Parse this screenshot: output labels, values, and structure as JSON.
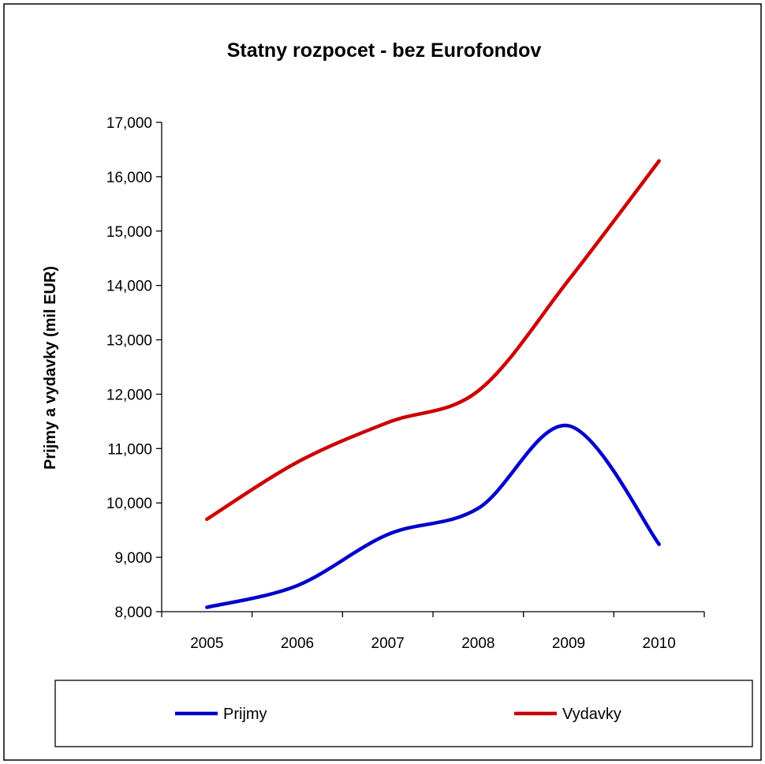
{
  "chart_data": {
    "type": "line",
    "title": "Statny rozpocet - bez Eurofondov",
    "xlabel": "",
    "ylabel": "Prijmy a vydavky (mil EUR)",
    "categories": [
      "2005",
      "2006",
      "2007",
      "2008",
      "2009",
      "2010"
    ],
    "ylim": [
      8000,
      17000
    ],
    "yticks": [
      8000,
      9000,
      10000,
      11000,
      12000,
      13000,
      14000,
      15000,
      16000,
      17000
    ],
    "ytick_labels": [
      "8,000",
      "9,000",
      "10,000",
      "11,000",
      "12,000",
      "13,000",
      "14,000",
      "15,000",
      "16,000",
      "17,000"
    ],
    "grid": false,
    "legend_position": "bottom",
    "series": [
      {
        "name": "Prijmy",
        "color": "#0000cc",
        "values": [
          8080,
          8480,
          9420,
          9900,
          11420,
          9240
        ]
      },
      {
        "name": "Vydavky",
        "color": "#cc0000",
        "values": [
          9700,
          10750,
          11480,
          12060,
          14100,
          16290
        ]
      }
    ]
  }
}
